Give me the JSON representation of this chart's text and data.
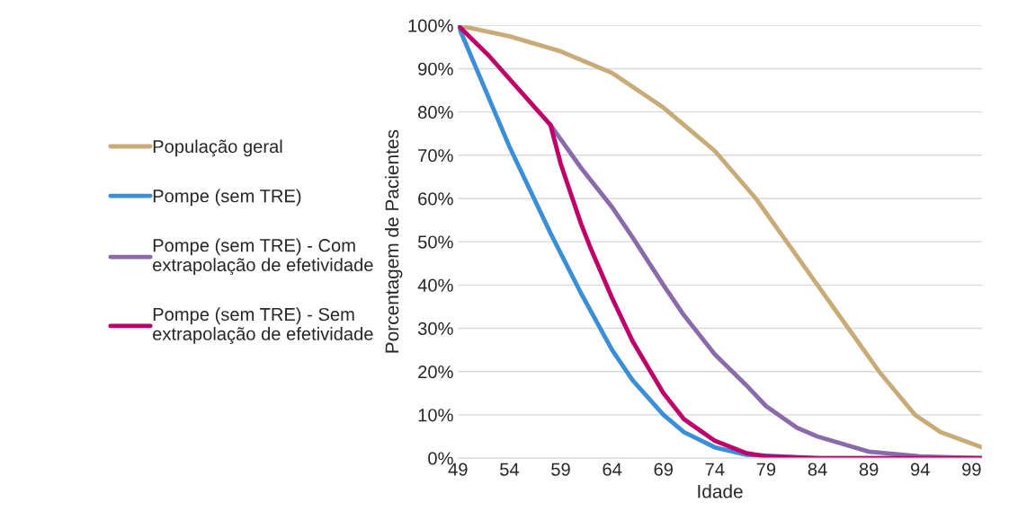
{
  "chart_data": {
    "type": "line",
    "xlabel": "Idade",
    "ylabel": "Porcentagem de Pacientes",
    "xlim": [
      49,
      100
    ],
    "xticks": [
      49,
      54,
      59,
      64,
      69,
      74,
      79,
      84,
      89,
      94,
      99
    ],
    "ylim": [
      0,
      100
    ],
    "yticks": [
      {
        "value": 0,
        "label": "0%"
      },
      {
        "value": 10,
        "label": "10%"
      },
      {
        "value": 20,
        "label": "20%"
      },
      {
        "value": 30,
        "label": "30%"
      },
      {
        "value": 40,
        "label": "40%"
      },
      {
        "value": 50,
        "label": "50%"
      },
      {
        "value": 60,
        "label": "60%"
      },
      {
        "value": 70,
        "label": "70%"
      },
      {
        "value": 80,
        "label": "80%"
      },
      {
        "value": 90,
        "label": "90%"
      },
      {
        "value": 100,
        "label": "100%"
      }
    ],
    "grid": "y",
    "legend": "left",
    "marker": "none",
    "line_style": "solid",
    "series": [
      {
        "name": "População geral",
        "color": "#c9ab77",
        "x": [
          49,
          54,
          59,
          64,
          69,
          74,
          78,
          81,
          84,
          87,
          90,
          93.5,
          96,
          100
        ],
        "values": [
          100,
          97.5,
          94,
          89,
          81,
          71,
          60,
          50,
          40,
          30,
          20,
          10,
          6,
          2.5
        ]
      },
      {
        "name": "Pompe (sem TRE)",
        "color": "#3a8fd6",
        "x": [
          49,
          54,
          58,
          61,
          64,
          66,
          69,
          71,
          74,
          77,
          84,
          100
        ],
        "values": [
          100,
          72,
          52,
          38,
          25,
          18,
          10,
          6,
          2.5,
          0.8,
          0,
          0
        ]
      },
      {
        "name": "Pompe (sem TRE) - Com\nextrapolação de efetividade",
        "color": "#8b6aab",
        "x": [
          58,
          61,
          64,
          66,
          69,
          71,
          74,
          77,
          79,
          82,
          84,
          89,
          94,
          100
        ],
        "values": [
          77,
          67,
          58,
          51,
          40,
          33,
          24,
          17,
          12,
          7,
          5,
          1.5,
          0.4,
          0
        ]
      },
      {
        "name": "Pompe (sem TRE) - Sem\nextrapolação de efetividade",
        "color": "#c0006a",
        "x": [
          49,
          52,
          55,
          58,
          59,
          60,
          61,
          62,
          64,
          66,
          69,
          71,
          74,
          77,
          79,
          84,
          100
        ],
        "values": [
          100,
          93,
          85,
          77,
          68,
          61,
          54,
          48,
          37,
          27,
          15,
          9,
          4,
          1.2,
          0.4,
          0,
          0
        ]
      }
    ]
  }
}
